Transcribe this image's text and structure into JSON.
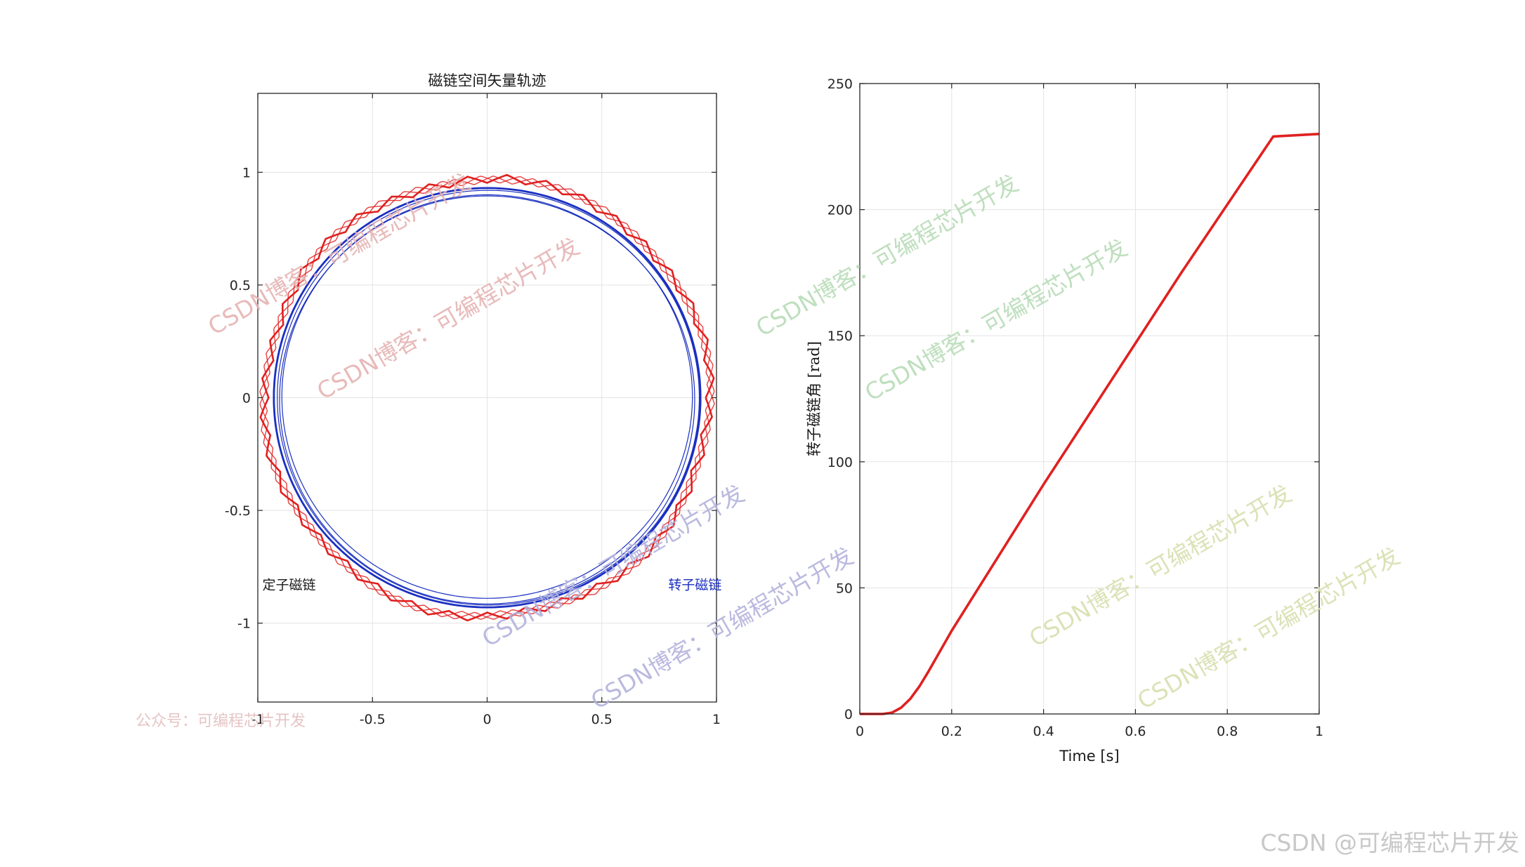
{
  "chart_data": [
    {
      "type": "line",
      "title": "磁链空间矢量轨迹",
      "xlim": [
        -1.0,
        1.0
      ],
      "ylim": [
        -1.35,
        1.35
      ],
      "x_ticks": [
        -1,
        -0.5,
        0,
        0.5,
        1
      ],
      "x_tick_labels": [
        "-1",
        "-0.5",
        "0",
        "0.5",
        "1"
      ],
      "y_ticks": [
        -1,
        -0.5,
        0,
        0.5,
        1
      ],
      "y_tick_labels": [
        "-1",
        "-0.5",
        "0",
        "0.5",
        "1"
      ],
      "grid": true,
      "annotations": [
        {
          "text": "定子磁链",
          "x": -0.98,
          "y": -0.85,
          "color": "#1a1a1a"
        },
        {
          "text": "转子磁链",
          "x": 0.79,
          "y": -0.85,
          "color": "#1a2fc0"
        }
      ],
      "series": [
        {
          "type": "hexagon-ish circle (stator flux)",
          "color": "#e02020",
          "radius_nominal": 0.97
        },
        {
          "type": "circle (rotor flux)",
          "color": "#1a2fc0",
          "radius_nominal": 0.93
        }
      ]
    },
    {
      "type": "line",
      "title": "",
      "xlabel": "Time [s]",
      "ylabel": "转子磁链角 [rad]",
      "xlim": [
        0,
        1
      ],
      "ylim": [
        0,
        250
      ],
      "x_ticks": [
        0,
        0.2,
        0.4,
        0.6,
        0.8,
        1
      ],
      "x_tick_labels": [
        "0",
        "0.2",
        "0.4",
        "0.6",
        "0.8",
        "1"
      ],
      "y_ticks": [
        0,
        50,
        100,
        150,
        200,
        250
      ],
      "y_tick_labels": [
        "0",
        "50",
        "100",
        "150",
        "200",
        "250"
      ],
      "grid": true,
      "series": [
        {
          "color": "#e02020",
          "x": [
            0,
            0.05,
            0.07,
            0.09,
            0.11,
            0.13,
            0.15,
            0.2,
            0.3,
            0.4,
            0.5,
            0.6,
            0.7,
            0.8,
            0.9,
            1.0
          ],
          "y": [
            0,
            0,
            0.5,
            2.5,
            6,
            11,
            17,
            33,
            62,
            91,
            119,
            147,
            175,
            202,
            229,
            230
          ]
        }
      ]
    }
  ],
  "watermarks": [
    {
      "text": "CSDN博客：可编程芯片开发",
      "color": "#e6b3b3"
    },
    {
      "text": "CSDN博客：可编程芯片开发",
      "color": "#e6b3b3"
    },
    {
      "text": "CSDN博客：可编程芯片开发",
      "color": "#b3b3dd"
    },
    {
      "text": "CSDN博客：可编程芯片开发",
      "color": "#b3b3dd"
    },
    {
      "text": "CSDN博客：可编程芯片开发",
      "color": "#b8dcb8"
    },
    {
      "text": "CSDN博客：可编程芯片开发",
      "color": "#b8dcb8"
    },
    {
      "text": "CSDN博客：可编程芯片开发",
      "color": "#d8dfb0"
    },
    {
      "text": "CSDN博客：可编程芯片开发",
      "color": "#d8dfb0"
    }
  ],
  "footer_left": "公众号：可编程芯片开发",
  "footer_right": "CSDN @可编程芯片开发"
}
